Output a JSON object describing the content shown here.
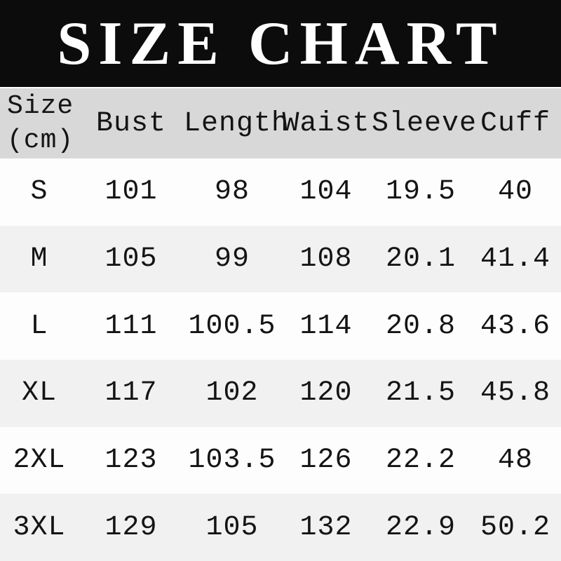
{
  "title": "SIZE CHART",
  "colors": {
    "banner_bg": "#0c0c0c",
    "title_text": "#ffffff",
    "header_row_bg": "#d8d8d8",
    "row_bg": "#fdfdfd",
    "row_alt_bg": "#f1f1f1",
    "text": "#141414"
  },
  "chart_data": {
    "type": "table",
    "title": "SIZE CHART",
    "unit": "cm",
    "corner_header": [
      "Size",
      "(cm)"
    ],
    "columns": [
      "Bust",
      "Length",
      "Waist",
      "Sleeve",
      "Cuff"
    ],
    "rows": [
      [
        "S",
        "101",
        "98",
        "104",
        "19.5",
        "40"
      ],
      [
        "M",
        "105",
        "99",
        "108",
        "20.1",
        "41.4"
      ],
      [
        "L",
        "111",
        "100.5",
        "114",
        "20.8",
        "43.6"
      ],
      [
        "XL",
        "117",
        "102",
        "120",
        "21.5",
        "45.8"
      ],
      [
        "2XL",
        "123",
        "103.5",
        "126",
        "22.2",
        "48"
      ],
      [
        "3XL",
        "129",
        "105",
        "132",
        "22.9",
        "50.2"
      ]
    ]
  }
}
